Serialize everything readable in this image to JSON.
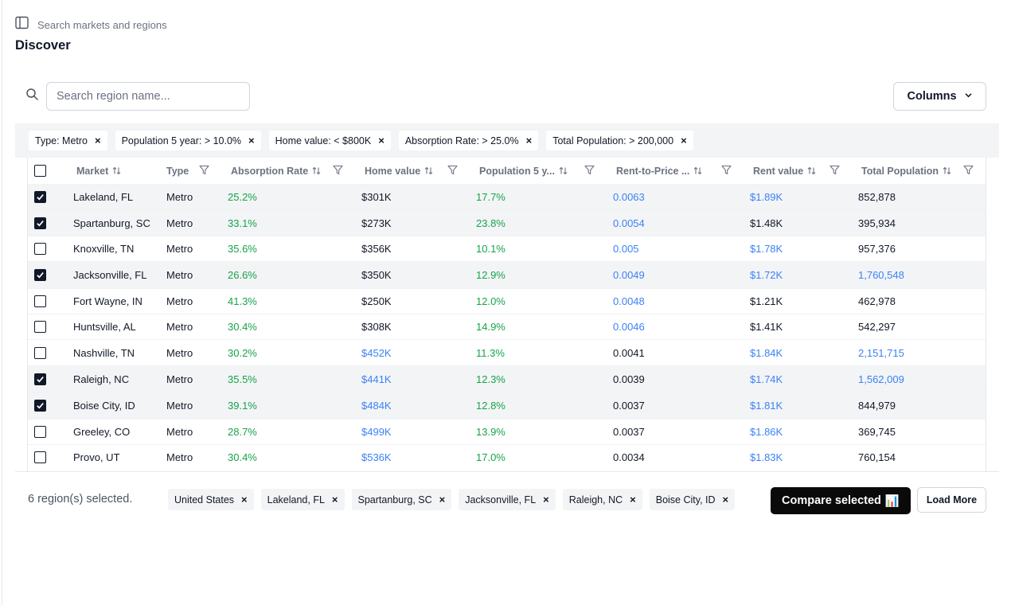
{
  "header": {
    "search_hint": "Search markets and regions",
    "title": "Discover"
  },
  "toolbar": {
    "search_placeholder": "Search region name...",
    "columns_label": "Columns"
  },
  "filters": [
    "Type: Metro",
    "Population 5 year: > 10.0%",
    "Home value: < $800K",
    "Absorption Rate: > 25.0%",
    "Total Population: > 200,000"
  ],
  "table": {
    "headers": {
      "market": "Market",
      "type": "Type",
      "absorption": "Absorption Rate",
      "home_value": "Home value",
      "pop5": "Population 5 y...",
      "rent_to_price": "Rent-to-Price ...",
      "rent": "Rent value",
      "total_pop": "Total Population"
    },
    "rows": [
      {
        "checked": true,
        "market": "Lakeland, FL",
        "type": "Metro",
        "absorption": "25.2%",
        "home_value": "$301K",
        "pop5": "17.7%",
        "rtp": "0.0063",
        "rent": "$1.89K",
        "total_pop": "852,878"
      },
      {
        "checked": true,
        "market": "Spartanburg, SC",
        "type": "Metro",
        "absorption": "33.1%",
        "home_value": "$273K",
        "pop5": "23.8%",
        "rtp": "0.0054",
        "rent": "$1.48K",
        "total_pop": "395,934"
      },
      {
        "checked": false,
        "market": "Knoxville, TN",
        "type": "Metro",
        "absorption": "35.6%",
        "home_value": "$356K",
        "pop5": "10.1%",
        "rtp": "0.005",
        "rent": "$1.78K",
        "total_pop": "957,376"
      },
      {
        "checked": true,
        "market": "Jacksonville, FL",
        "type": "Metro",
        "absorption": "26.6%",
        "home_value": "$350K",
        "pop5": "12.9%",
        "rtp": "0.0049",
        "rent": "$1.72K",
        "total_pop": "1,760,548"
      },
      {
        "checked": false,
        "market": "Fort Wayne, IN",
        "type": "Metro",
        "absorption": "41.3%",
        "home_value": "$250K",
        "pop5": "12.0%",
        "rtp": "0.0048",
        "rent": "$1.21K",
        "total_pop": "462,978"
      },
      {
        "checked": false,
        "market": "Huntsville, AL",
        "type": "Metro",
        "absorption": "30.4%",
        "home_value": "$308K",
        "pop5": "14.9%",
        "rtp": "0.0046",
        "rent": "$1.41K",
        "total_pop": "542,297"
      },
      {
        "checked": false,
        "market": "Nashville, TN",
        "type": "Metro",
        "absorption": "30.2%",
        "home_value": "$452K",
        "pop5": "11.3%",
        "rtp": "0.0041",
        "rent": "$1.84K",
        "total_pop": "2,151,715"
      },
      {
        "checked": true,
        "market": "Raleigh, NC",
        "type": "Metro",
        "absorption": "35.5%",
        "home_value": "$441K",
        "pop5": "12.3%",
        "rtp": "0.0039",
        "rent": "$1.74K",
        "total_pop": "1,562,009"
      },
      {
        "checked": true,
        "market": "Boise City, ID",
        "type": "Metro",
        "absorption": "39.1%",
        "home_value": "$484K",
        "pop5": "12.8%",
        "rtp": "0.0037",
        "rent": "$1.81K",
        "total_pop": "844,979"
      },
      {
        "checked": false,
        "market": "Greeley, CO",
        "type": "Metro",
        "absorption": "28.7%",
        "home_value": "$499K",
        "pop5": "13.9%",
        "rtp": "0.0037",
        "rent": "$1.86K",
        "total_pop": "369,745"
      },
      {
        "checked": false,
        "market": "Provo, UT",
        "type": "Metro",
        "absorption": "30.4%",
        "home_value": "$536K",
        "pop5": "17.0%",
        "rtp": "0.0034",
        "rent": "$1.83K",
        "total_pop": "760,154"
      }
    ]
  },
  "footer": {
    "selected_text": "6 region(s) selected.",
    "selected_chips": [
      "United States",
      "Lakeland, FL",
      "Spartanburg, SC",
      "Jacksonville, FL",
      "Raleigh, NC",
      "Boise City, ID"
    ],
    "compare_label": "Compare selected",
    "compare_emoji": "📊",
    "load_more_label": "Load More"
  },
  "colors": {
    "green": "#16a34a",
    "blue": "#3b82f6",
    "dark": "#111827",
    "selected_row": "#f3f4f6"
  }
}
